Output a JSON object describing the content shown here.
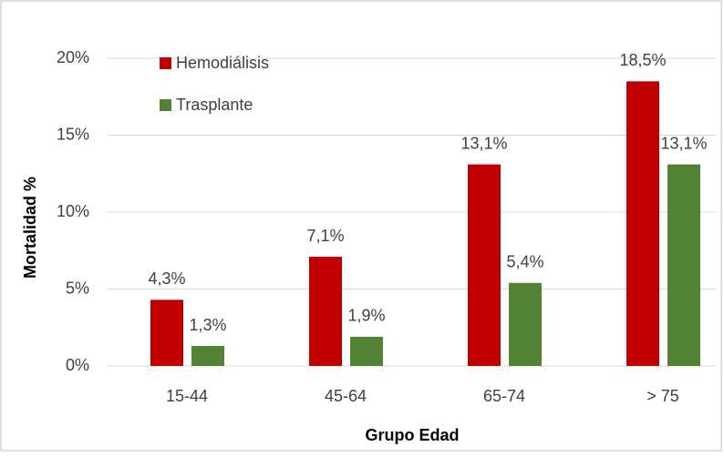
{
  "chart_data": {
    "type": "bar",
    "x_label": "Grupo Edad",
    "y_label": "Mortalidad %",
    "categories": [
      "15-44",
      "45-64",
      "65-74",
      "> 75"
    ],
    "series": [
      {
        "name": "Hemodiálisis",
        "color": "#c00000",
        "values": [
          4.3,
          7.1,
          13.1,
          18.5
        ],
        "value_labels": [
          "4,3%",
          "7,1%",
          "13,1%",
          "18,5%"
        ]
      },
      {
        "name": "Trasplante",
        "color": "#548235",
        "values": [
          1.3,
          1.9,
          5.4,
          13.1
        ],
        "value_labels": [
          "1,3%",
          "1,9%",
          "5,4%",
          "13,1%"
        ]
      }
    ],
    "ylim": [
      0,
      20
    ],
    "yticks": [
      {
        "value": 0,
        "label": "0%"
      },
      {
        "value": 5,
        "label": "5%"
      },
      {
        "value": 10,
        "label": "10%"
      },
      {
        "value": 15,
        "label": "15%"
      },
      {
        "value": 20,
        "label": "20%"
      }
    ],
    "grid": true,
    "legend": "top-left"
  }
}
